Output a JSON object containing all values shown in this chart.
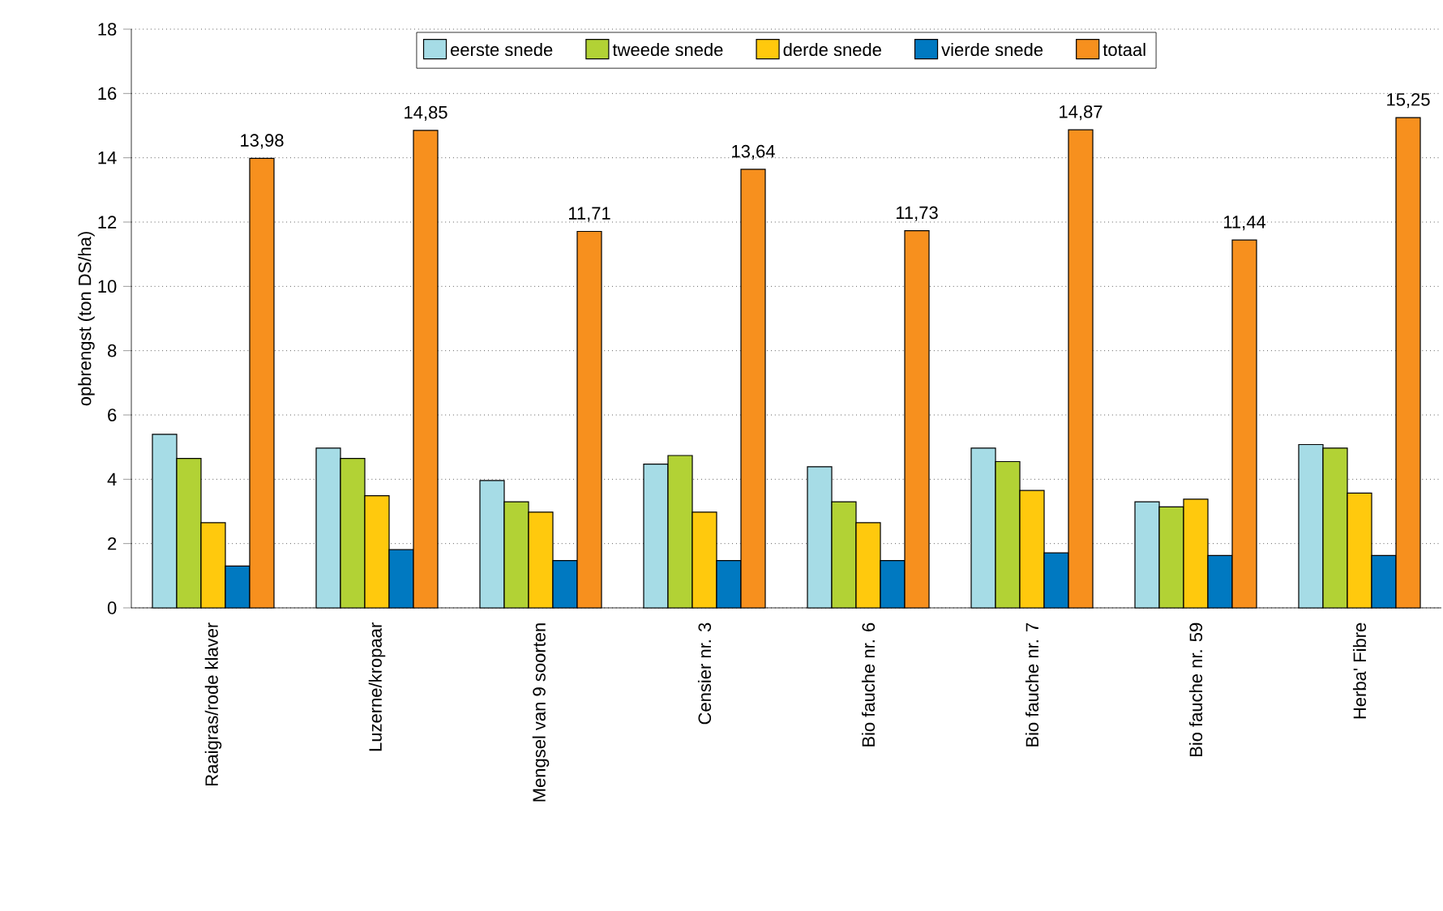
{
  "chart_data": {
    "type": "bar",
    "ylabel": "opbrengst (ton DS/ha)",
    "categories": [
      "Raaigras/rode klaver",
      "Luzerne/kropaar",
      "Mengsel van 9 soorten",
      "Censier nr. 3",
      "Bio fauche nr. 6",
      "Bio fauche nr. 7",
      "Bio fauche nr. 59",
      "Herba' Fibre"
    ],
    "series": [
      {
        "name": "eerste snede",
        "color": "#a6dce6",
        "values": [
          5.4,
          4.97,
          3.96,
          4.47,
          4.39,
          4.97,
          3.3,
          5.08
        ]
      },
      {
        "name": "tweede snede",
        "color": "#b2d235",
        "values": [
          4.65,
          4.65,
          3.3,
          4.74,
          3.3,
          4.55,
          3.14,
          4.97
        ]
      },
      {
        "name": "derde snede",
        "color": "#ffc90d",
        "values": [
          2.65,
          3.49,
          2.98,
          2.98,
          2.65,
          3.65,
          3.38,
          3.57
        ]
      },
      {
        "name": "vierde snede",
        "color": "#0079c1",
        "values": [
          1.3,
          1.81,
          1.47,
          1.47,
          1.47,
          1.71,
          1.63,
          1.63
        ]
      },
      {
        "name": "totaal",
        "color": "#f7901e",
        "values": [
          13.98,
          14.85,
          11.71,
          13.64,
          11.73,
          14.87,
          11.44,
          15.25
        ],
        "value_labels": [
          "13,98",
          "14,85",
          "11,71",
          "13,64",
          "11,73",
          "14,87",
          "11,44",
          "15,25"
        ]
      }
    ],
    "ylim": [
      0,
      18
    ],
    "yticks": [
      0,
      2,
      4,
      6,
      8,
      10,
      12,
      14,
      16,
      18
    ],
    "grid": "y",
    "legend": "top"
  }
}
